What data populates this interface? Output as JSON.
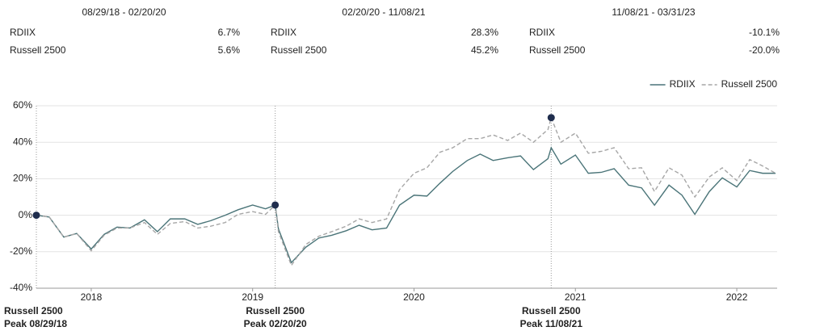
{
  "table": {
    "columns": [
      {
        "period": "08/29/18 - 02/20/20",
        "rows": [
          [
            "RDIIX",
            "6.7%"
          ],
          [
            "Russell 2500",
            "5.6%"
          ]
        ]
      },
      {
        "period": "02/20/20 - 11/08/21",
        "rows": [
          [
            "RDIIX",
            "28.3%"
          ],
          [
            "Russell 2500",
            "45.2%"
          ]
        ]
      },
      {
        "period": "11/08/21 - 03/31/23",
        "rows": [
          [
            "RDIIX",
            "-10.1%"
          ],
          [
            "Russell 2500",
            "-20.0%"
          ]
        ]
      }
    ]
  },
  "chart_data": {
    "type": "line",
    "x": [
      2017.66,
      2017.74,
      2017.83,
      2017.91,
      2018.0,
      2018.08,
      2018.16,
      2018.24,
      2018.33,
      2018.41,
      2018.49,
      2018.58,
      2018.66,
      2018.74,
      2018.83,
      2018.91,
      2019.0,
      2019.08,
      2019.14,
      2019.16,
      2019.24,
      2019.33,
      2019.41,
      2019.49,
      2019.58,
      2019.66,
      2019.74,
      2019.83,
      2019.91,
      2020.0,
      2020.08,
      2020.16,
      2020.24,
      2020.33,
      2020.41,
      2020.49,
      2020.58,
      2020.66,
      2020.74,
      2020.83,
      2020.85,
      2020.91,
      2021.0,
      2021.08,
      2021.16,
      2021.24,
      2021.33,
      2021.41,
      2021.49,
      2021.58,
      2021.66,
      2021.74,
      2021.83,
      2021.91,
      2022.0,
      2022.08,
      2022.16,
      2022.24
    ],
    "series": [
      {
        "name": "RDIIX",
        "color": "#4a7478",
        "dash": false,
        "values": [
          0,
          -1,
          -12,
          -10,
          -18.5,
          -10.5,
          -6.5,
          -7,
          -2.5,
          -9,
          -2,
          -2,
          -5,
          -3,
          0,
          3,
          5.6,
          3.5,
          5.6,
          -7.5,
          -26,
          -17.5,
          -12.5,
          -11,
          -8.5,
          -5.5,
          -8,
          -7,
          5.5,
          11,
          10.5,
          17.5,
          24,
          30,
          33.5,
          30,
          31.5,
          32.5,
          25,
          31,
          37,
          28,
          33,
          23,
          23.5,
          25.5,
          16.5,
          15,
          5.5,
          16.5,
          11,
          0.5,
          13,
          20.5,
          15.5,
          24.5,
          23,
          23
        ]
      },
      {
        "name": "Russell 2500",
        "color": "#a6a6a6",
        "dash": true,
        "values": [
          0,
          -1,
          -12,
          -10,
          -19.5,
          -11,
          -7,
          -7,
          -4,
          -10.5,
          -4.5,
          -3.5,
          -7,
          -6,
          -4,
          0.5,
          2,
          0.5,
          5.6,
          -9,
          -27.5,
          -16,
          -11.5,
          -9,
          -6,
          -2,
          -4,
          -2,
          14,
          23,
          26,
          34.5,
          37,
          42,
          42,
          44,
          41,
          45,
          40,
          47,
          53.5,
          40,
          45,
          34,
          35,
          37,
          25.5,
          26,
          13,
          26,
          22,
          10,
          21,
          26,
          19,
          30.5,
          27,
          23
        ]
      }
    ],
    "xlim": [
      2017.66,
      2022.25
    ],
    "xticks": [
      2018,
      2019,
      2020,
      2021,
      2022
    ],
    "ylim": [
      -40,
      60
    ],
    "yticks": [
      {
        "value": -40,
        "label": "-40%"
      },
      {
        "value": -20,
        "label": "-20%"
      },
      {
        "value": 0,
        "label": "0%"
      },
      {
        "value": 20,
        "label": "20%"
      },
      {
        "value": 40,
        "label": "40%"
      },
      {
        "value": 60,
        "label": "60%"
      }
    ],
    "grid": true,
    "legend": "top-right",
    "annotations": [
      {
        "x": 2017.66,
        "series": 1,
        "point": 0,
        "lines": [
          "Russell 2500",
          "Peak 08/29/18"
        ]
      },
      {
        "x": 2019.14,
        "series": 1,
        "point": 18,
        "lines": [
          "Russell 2500",
          "Peak 02/20/20"
        ]
      },
      {
        "x": 2020.85,
        "series": 1,
        "point": 40,
        "lines": [
          "Russell 2500",
          "Peak 11/08/21"
        ]
      }
    ],
    "marker_color": "#1f2d4d"
  }
}
